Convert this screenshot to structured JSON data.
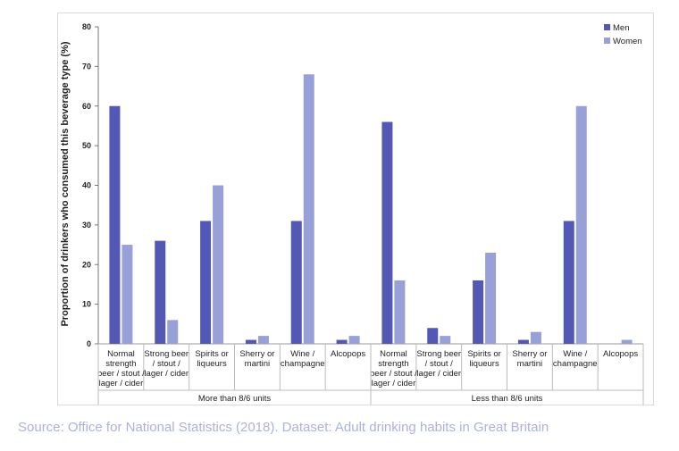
{
  "chart_data": {
    "type": "bar",
    "title": "",
    "ylabel": "Proportion of drinkers who consumed this beverage type (%)",
    "ylim": [
      0,
      80
    ],
    "yticks": [
      0,
      10,
      20,
      30,
      40,
      50,
      60,
      70,
      80
    ],
    "legend": {
      "position": "top-right"
    },
    "series_colors": {
      "Men": "#5458b5",
      "Women": "#98a0d8"
    },
    "groups": [
      {
        "label": "More than 8/6 units",
        "categories": [
          [
            "Normal",
            "strength",
            "beer / stout /",
            "lager / cider"
          ],
          [
            "Strong beer",
            "/ stout /",
            "lager / cider"
          ],
          [
            "Spirits or",
            "liqueurs"
          ],
          [
            "Sherry or",
            "martini"
          ],
          [
            "Wine /",
            "champagne"
          ],
          [
            "Alcopops"
          ]
        ],
        "series": [
          {
            "name": "Men",
            "values": [
              60,
              26,
              31,
              1,
              31,
              1
            ]
          },
          {
            "name": "Women",
            "values": [
              25,
              6,
              40,
              2,
              68,
              2
            ]
          }
        ]
      },
      {
        "label": "Less than 8/6 units",
        "categories": [
          [
            "Normal",
            "strength",
            "beer / stout /",
            "lager / cider"
          ],
          [
            "Strong beer",
            "/ stout /",
            "lager / cider"
          ],
          [
            "Spirits or",
            "liqueurs"
          ],
          [
            "Sherry or",
            "martini"
          ],
          [
            "Wine /",
            "champagne"
          ],
          [
            "Alcopops"
          ]
        ],
        "series": [
          {
            "name": "Men",
            "values": [
              56,
              4,
              16,
              1,
              31,
              0
            ]
          },
          {
            "name": "Women",
            "values": [
              16,
              2,
              23,
              3,
              60,
              1
            ]
          }
        ]
      }
    ]
  },
  "source": "Source: Office for National Statistics (2018). Dataset: Adult drinking habits in Great Britain"
}
